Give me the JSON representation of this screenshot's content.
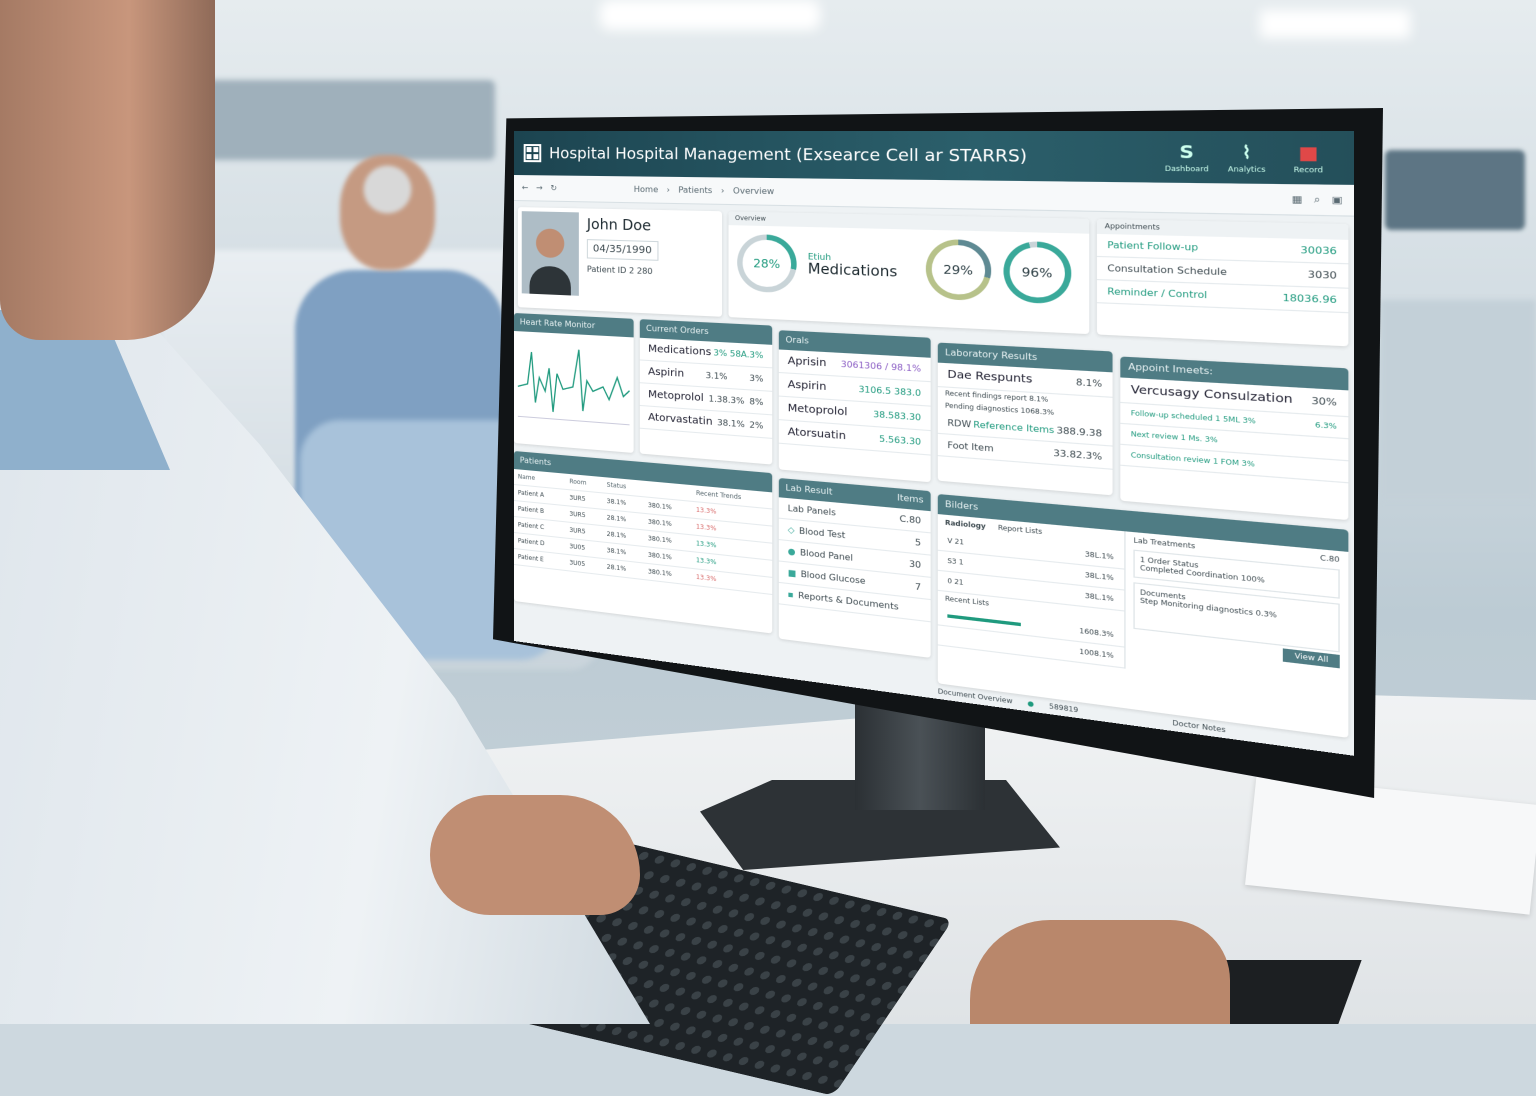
{
  "app": {
    "title": "Hospital Hospital Management (Exsearce Cell ar STARRS)",
    "toolbar_icons": [
      "s-logo-icon",
      "chart-icon",
      "video-icon"
    ],
    "toolbar_labels": [
      "Dashboard",
      "Analytics",
      "Record"
    ]
  },
  "nav": {
    "breadcrumb": [
      "Home",
      "Patients",
      "Overview"
    ],
    "tools": [
      "calendar-icon",
      "search-icon",
      "clipboard-icon"
    ]
  },
  "patient": {
    "name": "John Doe",
    "dob": "04/35/1990",
    "id_label": "Patient ID",
    "id_value": "2 280"
  },
  "summary": {
    "header": "Overview",
    "ring1": "28%",
    "label_small": "Etiuh",
    "label": "Medications",
    "ring2": "29%",
    "ring3": "96%",
    "colors": {
      "teal": "#3aa99a",
      "olive": "#b7c28a",
      "slate": "#5f8a93"
    }
  },
  "appointments_top": {
    "header": "Appointments",
    "rows": [
      {
        "text": "Patient Follow-up",
        "value": "30036"
      },
      {
        "text": "Consultation Schedule",
        "value": "3030"
      },
      {
        "text": "Reminder / Control",
        "value": "18036.96"
      }
    ]
  },
  "ecg": {
    "header": "Heart Rate Monitor",
    "color": "#1f9a7e"
  },
  "meds": {
    "header": "Current Orders",
    "title": "Medications",
    "title_value": "3% 58A.3%",
    "rows": [
      {
        "name": "Aspirin",
        "dose": "3.1%",
        "pct": "3%"
      },
      {
        "name": "Metoprolol",
        "dose": "1.38.3%",
        "pct": "8%"
      },
      {
        "name": "Atorvastatin",
        "dose": "38.1%",
        "pct": "2%"
      }
    ]
  },
  "orals": {
    "header": "Orals",
    "rows": [
      {
        "name": "Aprisin",
        "value": "3061306 / 98.1%"
      },
      {
        "name": "Aspirin",
        "value": "3106.5 383.0"
      },
      {
        "name": "Metoprolol",
        "value": "38.583.30"
      },
      {
        "name": "Atorsuatin",
        "value": "5.563.30"
      }
    ]
  },
  "results": {
    "header": "Laboratory Results",
    "title": "Dae Respunts",
    "title_value": "8.1%",
    "lines": [
      "Recent findings report 8.1%",
      "Pending diagnostics 1068.3%"
    ],
    "rows": [
      {
        "name": "RDW",
        "tag": "Reference Items",
        "value": "388.9.38"
      },
      {
        "name": "Foot Item",
        "tag": "",
        "value": "33.82.3%"
      }
    ]
  },
  "appointments": {
    "header": "Appoint Imeets:",
    "title": "Vercusagy Consulzation",
    "title_value": "30%",
    "rows": [
      {
        "text": "Follow-up scheduled 1 5ML 3%",
        "value": "6.3%"
      },
      {
        "text": "Next review 1 Ms. 3%",
        "value": ""
      },
      {
        "text": "Consultation review 1 FOM 3%",
        "value": ""
      }
    ]
  },
  "patients": {
    "header": "Patients",
    "columns": [
      "Name",
      "Room",
      "Status",
      "Recent Trends"
    ],
    "rows": [
      {
        "name": "Patient A",
        "room": "3UR5",
        "a": "38.1%",
        "b": "380.1%",
        "c": "13.3%",
        "trend": "red"
      },
      {
        "name": "Patient B",
        "room": "3UR5",
        "a": "28.1%",
        "b": "380.1%",
        "c": "13.3%",
        "trend": "red"
      },
      {
        "name": "Patient C",
        "room": "3UR5",
        "a": "28.1%",
        "b": "380.1%",
        "c": "13.3%",
        "trend": "green"
      },
      {
        "name": "Patient D",
        "room": "3U05",
        "a": "38.1%",
        "b": "380.1%",
        "c": "13.3%",
        "trend": "green"
      },
      {
        "name": "Patient E",
        "room": "3U05",
        "a": "28.1%",
        "b": "380.1%",
        "c": "13.3%",
        "trend": "red"
      }
    ]
  },
  "lab": {
    "header": "Lab Result",
    "header_value": "Items",
    "sub": "Lab Panels",
    "sub_value": "C.80",
    "rows": [
      {
        "name": "Blood Test",
        "value": "5"
      },
      {
        "name": "Blood Panel",
        "value": "30"
      },
      {
        "name": "Blood Glucose",
        "value": "7"
      },
      {
        "name": "Reports & Documents",
        "value": ""
      }
    ]
  },
  "bottom": {
    "header": "Bilders",
    "tabs": [
      "Radiology",
      "Report Lists"
    ],
    "rows": [
      {
        "id": "V 21",
        "value": "38L.1%"
      },
      {
        "id": "S3 1",
        "value": "38L.1%"
      },
      {
        "id": "0 21",
        "value": "38L.1%"
      }
    ],
    "subtitle": "Recent Lists",
    "totals": [
      "1608.3%",
      "1008.1%"
    ],
    "right_title": "Lab Treatments",
    "right_value": "C.80",
    "items": [
      {
        "title": "1 Order Status",
        "text": "Completed Coordination 100%"
      },
      {
        "title": "Documents",
        "text": "Step Monitoring diagnostics 0.3%"
      }
    ],
    "footer": "Document Overview",
    "footer_value": "589819",
    "button": "View All",
    "footer_right": "Doctor Notes"
  }
}
